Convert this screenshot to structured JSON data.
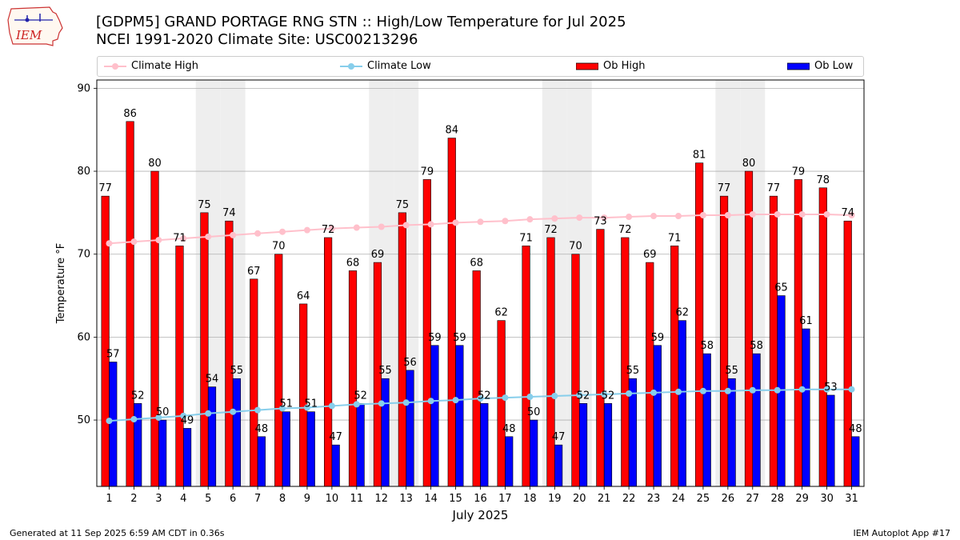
{
  "header": {
    "logo_text": "IEM",
    "title_line1": "[GDPM5] GRAND PORTAGE RNG STN :: High/Low Temperature for Jul 2025",
    "title_line2": "NCEI 1991-2020 Climate Site: USC00213296"
  },
  "footer": {
    "generated": "Generated at 11 Sep 2025 6:59 AM CDT in 0.36s",
    "app": "IEM Autoplot App #17"
  },
  "colors": {
    "ob_high": "#ff0000",
    "ob_low": "#0000ff",
    "climate_high": "#ffc0cb",
    "climate_low": "#87ceeb",
    "weekend_band": "#eeeeee",
    "grid": "#b0b0b0"
  },
  "chart_data": {
    "type": "bar",
    "xlabel": "July 2025",
    "ylabel": "Temperature °F",
    "ylim": [
      42,
      91
    ],
    "yticks": [
      50,
      60,
      70,
      80,
      90
    ],
    "grid": true,
    "legend_position": "top",
    "weekend_days": [
      5,
      6,
      12,
      13,
      19,
      20,
      26,
      27
    ],
    "categories": [
      "1",
      "2",
      "3",
      "4",
      "5",
      "6",
      "7",
      "8",
      "9",
      "10",
      "11",
      "12",
      "13",
      "14",
      "15",
      "16",
      "17",
      "18",
      "19",
      "20",
      "21",
      "22",
      "23",
      "24",
      "25",
      "26",
      "27",
      "28",
      "29",
      "30",
      "31"
    ],
    "series": [
      {
        "name": "Climate High",
        "kind": "line",
        "values": [
          71.3,
          71.5,
          71.7,
          71.9,
          72.1,
          72.3,
          72.5,
          72.7,
          72.9,
          73.1,
          73.2,
          73.3,
          73.5,
          73.6,
          73.8,
          73.9,
          74.0,
          74.2,
          74.3,
          74.4,
          74.4,
          74.5,
          74.6,
          74.6,
          74.7,
          74.7,
          74.8,
          74.8,
          74.8,
          74.8,
          74.7
        ]
      },
      {
        "name": "Climate Low",
        "kind": "line",
        "values": [
          49.9,
          50.1,
          50.3,
          50.5,
          50.8,
          51.0,
          51.2,
          51.4,
          51.5,
          51.7,
          51.9,
          52.0,
          52.1,
          52.3,
          52.4,
          52.6,
          52.7,
          52.8,
          52.9,
          53.0,
          53.1,
          53.2,
          53.3,
          53.4,
          53.5,
          53.5,
          53.6,
          53.6,
          53.7,
          53.7,
          53.7
        ]
      },
      {
        "name": "Ob High",
        "kind": "bar",
        "values": [
          77,
          86,
          80,
          71,
          75,
          74,
          67,
          70,
          64,
          72,
          68,
          69,
          75,
          79,
          84,
          68,
          62,
          71,
          72,
          70,
          73,
          72,
          69,
          71,
          81,
          77,
          80,
          77,
          79,
          78,
          74
        ]
      },
      {
        "name": "Ob Low",
        "kind": "bar",
        "values": [
          57,
          52,
          50,
          49,
          54,
          55,
          48,
          51,
          51,
          47,
          52,
          55,
          56,
          59,
          59,
          52,
          48,
          50,
          47,
          52,
          52,
          55,
          59,
          62,
          58,
          55,
          58,
          65,
          61,
          53,
          48
        ]
      }
    ]
  }
}
